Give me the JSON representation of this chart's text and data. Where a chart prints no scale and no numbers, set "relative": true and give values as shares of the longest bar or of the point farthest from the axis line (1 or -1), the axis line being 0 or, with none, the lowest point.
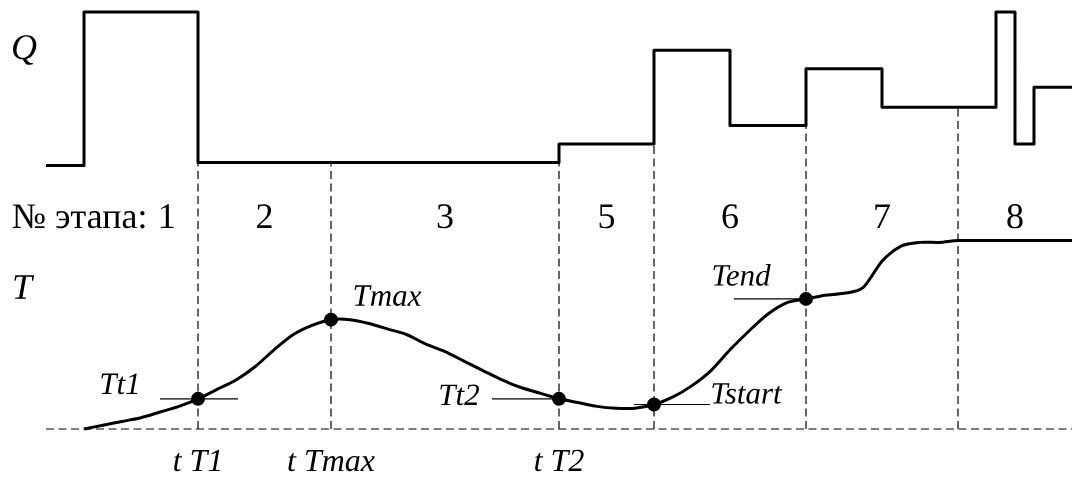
{
  "chart_data": [
    {
      "type": "step",
      "ylabel": "Q",
      "relative": true,
      "color": "#000000",
      "categories": [
        null,
        null,
        null,
        null,
        null,
        null,
        null,
        null,
        null,
        null,
        null,
        null,
        null,
        null,
        null,
        null,
        null,
        null,
        null,
        null,
        null,
        null,
        null,
        null,
        null,
        null,
        null,
        null,
        null,
        null,
        null,
        null,
        null,
        null,
        null,
        null,
        null,
        null,
        null,
        null,
        null,
        null,
        null,
        null,
        null,
        null,
        null,
        null,
        null,
        null,
        null,
        null,
        null,
        null,
        null
      ],
      "values": [
        0,
        0,
        1,
        1,
        1,
        1,
        1,
        1,
        0.02,
        0.02,
        0.02,
        0.02,
        0.02,
        0.02,
        0.02,
        0.02,
        0.02,
        0.02,
        0.02,
        0.02,
        0.02,
        0.02,
        0.02,
        0.02,
        0.02,
        0.02,
        0.02,
        0.14,
        0.14,
        0.14,
        0.14,
        0.14,
        0.75,
        0.75,
        0.75,
        0.75,
        0.26,
        0.26,
        0.26,
        0.26,
        0.63,
        0.63,
        0.63,
        0.63,
        0.38,
        0.38,
        0.38,
        0.38,
        0.38,
        0.38,
        1,
        0.14,
        0.51,
        0.51,
        0.51
      ]
    },
    {
      "type": "line",
      "ylabel": "T",
      "relative": true,
      "grid": "x",
      "categories": [
        null,
        null,
        null,
        null,
        null,
        null,
        null,
        null,
        "t T1",
        null,
        null,
        null,
        null,
        null,
        null,
        "t Tmax",
        null,
        null,
        null,
        null,
        null,
        null,
        null,
        null,
        null,
        null,
        null,
        "t T2",
        null,
        null,
        null,
        null,
        null,
        null,
        null,
        null,
        null,
        null,
        null,
        null,
        null,
        null,
        null,
        null,
        null,
        null,
        null,
        null,
        null,
        null,
        null,
        null,
        null,
        null,
        null
      ],
      "series": [
        {
          "type": "line",
          "color": "#000000",
          "values": [
            null,
            null,
            0,
            0.02,
            0.04,
            0.06,
            0.09,
            0.12,
            0.16,
            0.21,
            0.26,
            0.33,
            0.42,
            0.5,
            0.55,
            0.58,
            0.58,
            0.56,
            0.53,
            0.5,
            0.45,
            0.41,
            0.36,
            0.31,
            0.26,
            0.22,
            0.19,
            0.16,
            0.14,
            0.12,
            0.11,
            0.11,
            0.13,
            0.17,
            0.23,
            0.31,
            0.42,
            0.52,
            0.61,
            0.67,
            0.69,
            0.71,
            0.72,
            0.75,
            0.89,
            0.97,
            0.99,
            0.99,
            1,
            1,
            1,
            1,
            1,
            1,
            1
          ]
        },
        {
          "type": "scatter",
          "color": "#000000",
          "marker": "circle",
          "values": [
            null,
            null,
            null,
            null,
            null,
            null,
            null,
            null,
            0.16,
            null,
            null,
            null,
            null,
            null,
            null,
            0.58,
            null,
            null,
            null,
            null,
            null,
            null,
            null,
            null,
            null,
            null,
            null,
            0.16,
            null,
            null,
            null,
            null,
            0.13,
            null,
            null,
            null,
            null,
            null,
            null,
            null,
            0.69,
            null,
            null,
            null,
            null,
            null,
            null,
            null,
            null,
            null,
            null,
            null,
            null,
            null,
            null
          ]
        }
      ],
      "annotations": [
        "№ этапа:",
        "1",
        "2",
        "3",
        "5",
        "6",
        "7",
        "8",
        {
          "text": "Tt1",
          "x": "t T1",
          "y": 0.16
        },
        {
          "text": "Tmax",
          "x": "t Tmax",
          "y": 0.58
        },
        {
          "text": "Tt2",
          "x": "t T2",
          "y": 0.16
        },
        "Tstart",
        "Tend"
      ]
    }
  ]
}
